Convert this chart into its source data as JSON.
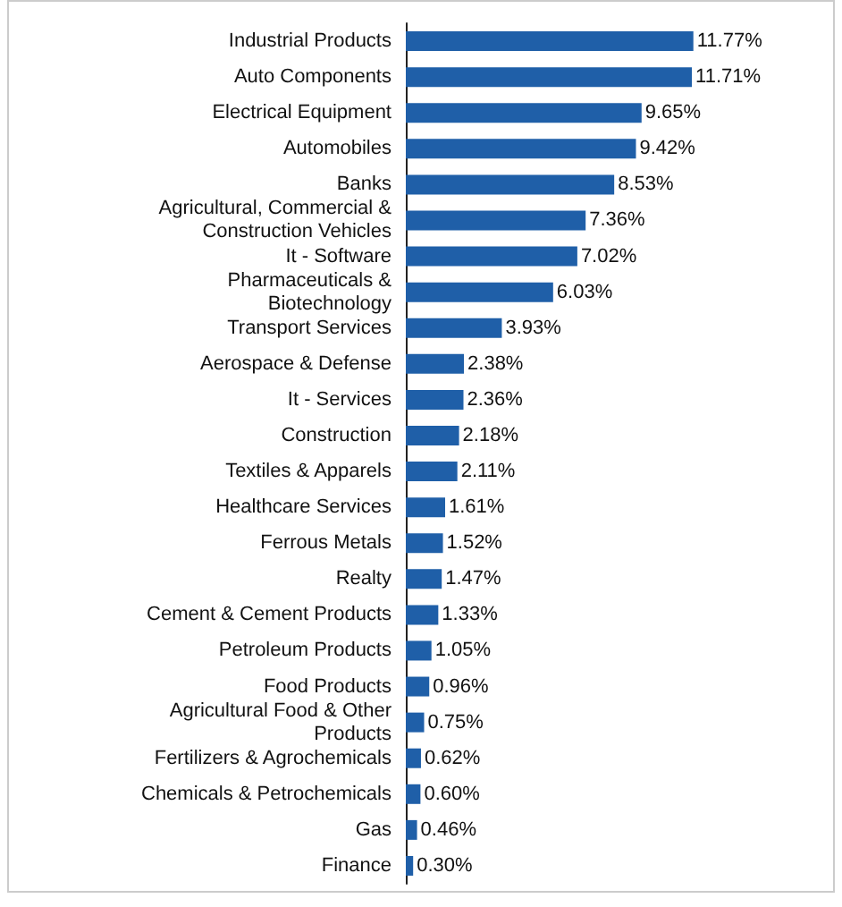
{
  "chart_data": {
    "type": "bar",
    "orientation": "horizontal",
    "color": "#1f5fa8",
    "value_labels": [
      "11.77%",
      "11.71%",
      "9.65%",
      "9.42%",
      "8.53%",
      "7.36%",
      "7.02%",
      "6.03%",
      "3.93%",
      "2.38%",
      "2.36%",
      "2.18%",
      "2.11%",
      "1.61%",
      "1.52%",
      "1.47%",
      "1.33%",
      "1.05%",
      "0.96%",
      "0.75%",
      "0.62%",
      "0.60%",
      "0.46%",
      "0.30%"
    ],
    "categories": [
      "Industrial Products",
      "Auto Components",
      "Electrical Equipment",
      "Automobiles",
      "Banks",
      "Agricultural, Commercial &\nConstruction Vehicles",
      "It - Software",
      "Pharmaceuticals &\nBiotechnology",
      "Transport Services",
      "Aerospace & Defense",
      "It - Services",
      "Construction",
      "Textiles & Apparels",
      "Healthcare Services",
      "Ferrous Metals",
      "Realty",
      "Cement & Cement Products",
      "Petroleum Products",
      "Food Products",
      "Agricultural Food & Other\nProducts",
      "Fertilizers & Agrochemicals",
      "Chemicals & Petrochemicals",
      "Gas",
      "Finance"
    ],
    "values": [
      11.77,
      11.71,
      9.65,
      9.42,
      8.53,
      7.36,
      7.02,
      6.03,
      3.93,
      2.38,
      2.36,
      2.18,
      2.11,
      1.61,
      1.52,
      1.47,
      1.33,
      1.05,
      0.96,
      0.75,
      0.62,
      0.6,
      0.46,
      0.3
    ]
  }
}
